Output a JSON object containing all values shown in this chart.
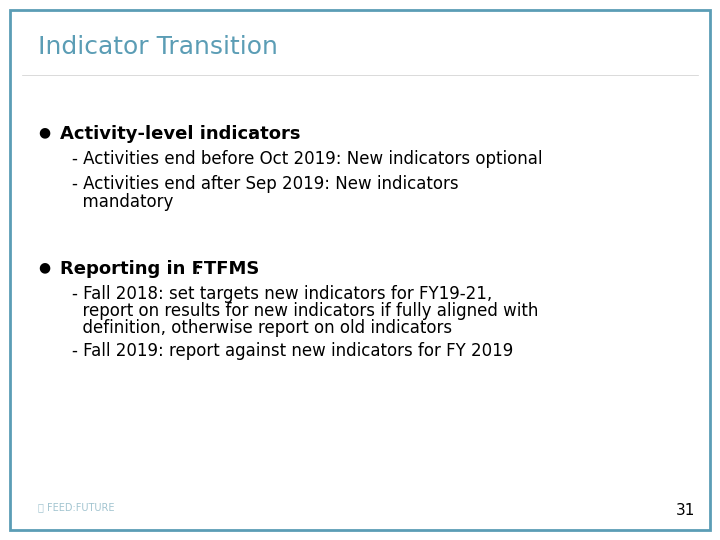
{
  "title": "Indicator Transition",
  "title_color": "#5b9db5",
  "background_color": "#ffffff",
  "border_color": "#5b9db5",
  "bullet1_bold": "Activity-level indicators",
  "bullet1_bold_suffix": ":",
  "bullet1_sub1": "- Activities end before Oct 2019: New indicators optional",
  "bullet1_sub2a": "- Activities end after Sep 2019: New indicators",
  "bullet1_sub2b": "  mandatory",
  "bullet2_bold": "Reporting in FTFMS",
  "bullet2_bold_suffix": ":",
  "bullet2_sub1a": "- Fall 2018: set targets new indicators for FY19-21,",
  "bullet2_sub1b": "  report on results for new indicators if fully aligned with",
  "bullet2_sub1c": "  definition, otherwise report on old indicators",
  "bullet2_sub2": "- Fall 2019: report against new indicators for FY 2019",
  "page_number": "31",
  "text_color": "#000000",
  "font_size_title": 18,
  "font_size_bullet_header": 13,
  "font_size_body": 12,
  "font_size_page": 11
}
